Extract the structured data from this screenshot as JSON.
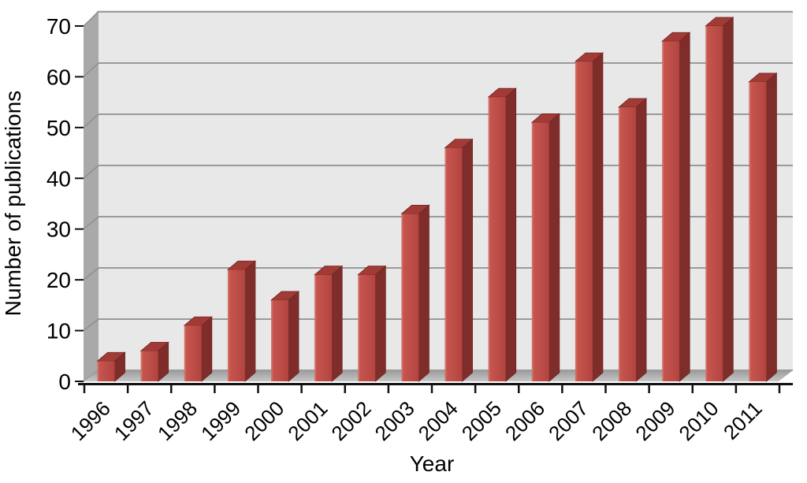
{
  "chart_data": {
    "type": "bar",
    "style": "3d-column",
    "title": "",
    "xlabel": "Year",
    "ylabel": "Number of publications",
    "categories": [
      "1996",
      "1997",
      "1998",
      "1999",
      "2000",
      "2001",
      "2002",
      "2003",
      "2004",
      "2005",
      "2006",
      "2007",
      "2008",
      "2009",
      "2010",
      "2011"
    ],
    "values": [
      4,
      6,
      11,
      22,
      16,
      21,
      21,
      33,
      46,
      56,
      51,
      63,
      54,
      67,
      70,
      59
    ],
    "y_ticks": [
      0,
      10,
      20,
      30,
      40,
      50,
      60,
      70
    ],
    "ylim": [
      0,
      70
    ],
    "grid": true,
    "legend": false,
    "colors": {
      "bar_front_light": "#C8574F",
      "bar_front_dark": "#B24440",
      "bar_top": "#A23A36",
      "bar_side": "#7F2D2A",
      "bar_edge": "#6E2523",
      "bar_highlight": "#D4736C",
      "back_wall": "#E8E8E8",
      "side_wall": "#A9A9A9",
      "floor_back": "#9B9B9B",
      "floor_front": "#C6C6C6",
      "gridline": "#8F8F8F",
      "axis": "#111111",
      "text": "#000000",
      "background": "#FFFFFF"
    }
  }
}
